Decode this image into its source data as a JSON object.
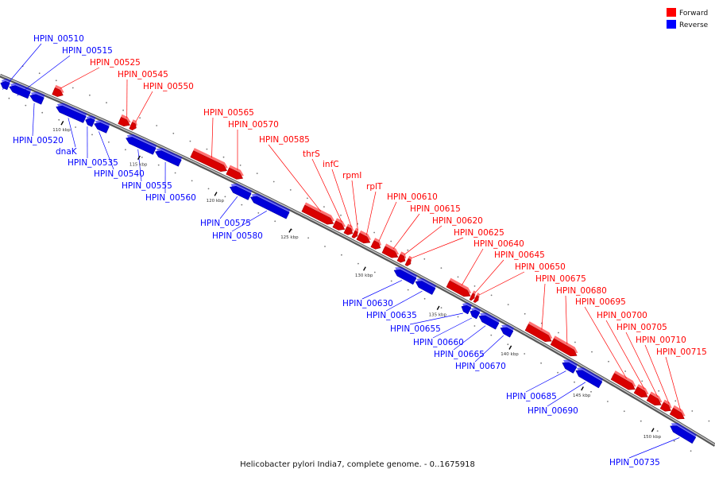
{
  "caption": "Helicobacter pylori India7, complete genome. - 0..1675918",
  "legend": [
    {
      "label": "Forward",
      "color": "#ff0000"
    },
    {
      "label": "Reverse",
      "color": "#0000ff"
    }
  ],
  "colors": {
    "forward": "#ff0000",
    "reverse": "#0000ff",
    "backbone": "#888888"
  },
  "ticks": [
    "110 kbp",
    "115 kbp",
    "120 kbp",
    "125 kbp",
    "130 kbp",
    "135 kbp",
    "140 kbp",
    "145 kbp",
    "150 kbp"
  ],
  "forward_genes": [
    "HPIN_00525",
    "HPIN_00545",
    "HPIN_00550",
    "HPIN_00565",
    "HPIN_00570",
    "HPIN_00585",
    "thrS",
    "infC",
    "rpmI",
    "rplT",
    "HPIN_00610",
    "HPIN_00615",
    "HPIN_00620",
    "HPIN_00625",
    "HPIN_00640",
    "HPIN_00645",
    "HPIN_00650",
    "HPIN_00675",
    "HPIN_00680",
    "HPIN_00695",
    "HPIN_00700",
    "HPIN_00705",
    "HPIN_00710",
    "HPIN_00715"
  ],
  "reverse_genes": [
    "HPIN_00510",
    "HPIN_00515",
    "HPIN_00520",
    "dnaK",
    "HPIN_00535",
    "HPIN_00540",
    "HPIN_00555",
    "HPIN_00560",
    "HPIN_00575",
    "HPIN_00580",
    "HPIN_00630",
    "HPIN_00635",
    "HPIN_00655",
    "HPIN_00660",
    "HPIN_00665",
    "HPIN_00670",
    "HPIN_00685",
    "HPIN_00690",
    "HPIN_00735"
  ]
}
